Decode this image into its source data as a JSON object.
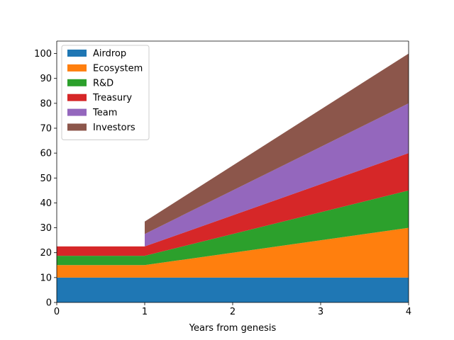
{
  "chart_data": {
    "type": "area",
    "stacked": true,
    "xlabel": "Years from genesis",
    "ylabel": "",
    "title": "",
    "xlim": [
      0,
      4
    ],
    "ylim": [
      0,
      105
    ],
    "xticks": [
      0,
      1,
      2,
      3,
      4
    ],
    "yticks": [
      0,
      10,
      20,
      30,
      40,
      50,
      60,
      70,
      80,
      90,
      100
    ],
    "grid": false,
    "legend_position": "top-left",
    "series": [
      {
        "name": "Airdrop",
        "color": "#1f77b4",
        "points": [
          [
            0,
            10
          ],
          [
            1,
            10
          ],
          [
            4,
            10
          ]
        ]
      },
      {
        "name": "Ecosystem",
        "color": "#ff7f0e",
        "points": [
          [
            0,
            5
          ],
          [
            1,
            5
          ],
          [
            4,
            20
          ]
        ]
      },
      {
        "name": "R&D",
        "color": "#2ca02c",
        "points": [
          [
            0,
            3.75
          ],
          [
            1,
            3.75
          ],
          [
            4,
            15
          ]
        ]
      },
      {
        "name": "Treasury",
        "color": "#d62728",
        "points": [
          [
            0,
            3.75
          ],
          [
            1,
            3.75
          ],
          [
            4,
            15
          ]
        ]
      },
      {
        "name": "Team",
        "color": "#9467bd",
        "points": [
          [
            1,
            5
          ],
          [
            4,
            20
          ]
        ]
      },
      {
        "name": "Investors",
        "color": "#8c564b",
        "points": [
          [
            1,
            5
          ],
          [
            4,
            20
          ]
        ]
      }
    ]
  }
}
